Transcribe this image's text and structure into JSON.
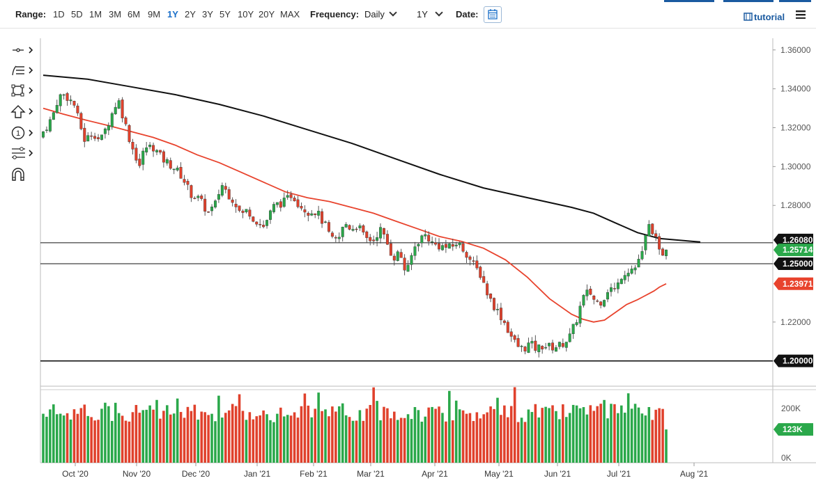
{
  "toolbar": {
    "range_label": "Range:",
    "ranges": [
      "1D",
      "5D",
      "1M",
      "3M",
      "6M",
      "9M",
      "1Y",
      "2Y",
      "3Y",
      "5Y",
      "10Y",
      "20Y",
      "MAX"
    ],
    "active_range": "1Y",
    "frequency_label": "Frequency:",
    "frequency_value": "Daily",
    "period_value": "1Y",
    "date_label": "Date:",
    "tutorial_label": "tutorial"
  },
  "drawing_tools": [
    "crosshair-icon",
    "trend-lines-icon",
    "shapes-icon",
    "arrow-up-icon",
    "counter-icon",
    "fibonacci-icon",
    "magnet-icon"
  ],
  "colors": {
    "up": "#2aa84a",
    "down": "#e0412c",
    "ma_fast": "#e8432d",
    "ma_slow": "#111111",
    "price_tag": "#2aa84a"
  },
  "chart_data": {
    "type": "candlestick",
    "y_axis": {
      "ticks": [
        "1.36000",
        "1.34000",
        "1.32000",
        "1.30000",
        "1.28000",
        "1.22000"
      ],
      "range": [
        1.187,
        1.366
      ]
    },
    "x_axis": {
      "labels": [
        "Oct '20",
        "Nov '20",
        "Dec '20",
        "Jan '21",
        "Feb '21",
        "Mar '21",
        "Apr '21",
        "May '21",
        "Jun '21",
        "Jul '21",
        "Aug '21"
      ]
    },
    "horizontal_levels": [
      {
        "value": 1.2608,
        "label": "1.26080"
      },
      {
        "value": 1.25,
        "label": "1.25000"
      },
      {
        "value": 1.2,
        "label": "1.20000"
      }
    ],
    "last_price": {
      "value": 1.25714,
      "label": "1.25714"
    },
    "moving_average_fast_last": {
      "value": 1.23971,
      "label": "1.23971"
    },
    "ma_fast_path": [
      [
        0,
        1.33
      ],
      [
        18,
        1.327
      ],
      [
        38,
        1.324
      ],
      [
        60,
        1.321
      ],
      [
        80,
        1.318
      ],
      [
        100,
        1.315
      ],
      [
        120,
        1.311
      ],
      [
        140,
        1.306
      ],
      [
        160,
        1.302
      ],
      [
        180,
        1.297
      ],
      [
        200,
        1.292
      ],
      [
        220,
        1.287
      ],
      [
        240,
        1.284
      ],
      [
        260,
        1.282
      ],
      [
        280,
        1.279
      ],
      [
        300,
        1.276
      ],
      [
        320,
        1.272
      ],
      [
        340,
        1.268
      ],
      [
        360,
        1.264
      ],
      [
        380,
        1.2615
      ],
      [
        400,
        1.258
      ],
      [
        420,
        1.252
      ],
      [
        440,
        1.243
      ],
      [
        460,
        1.232
      ],
      [
        480,
        1.224
      ],
      [
        490,
        1.2215
      ],
      [
        500,
        1.22
      ],
      [
        510,
        1.221
      ],
      [
        520,
        1.225
      ],
      [
        530,
        1.229
      ],
      [
        540,
        1.2315
      ],
      [
        545,
        1.233
      ],
      [
        550,
        1.2345
      ],
      [
        555,
        1.236
      ],
      [
        560,
        1.238
      ],
      [
        566,
        1.2397
      ]
    ],
    "ma_slow_path": [
      [
        0,
        1.347
      ],
      [
        40,
        1.345
      ],
      [
        80,
        1.341
      ],
      [
        120,
        1.337
      ],
      [
        160,
        1.332
      ],
      [
        200,
        1.326
      ],
      [
        240,
        1.319
      ],
      [
        280,
        1.312
      ],
      [
        320,
        1.304
      ],
      [
        360,
        1.296
      ],
      [
        400,
        1.289
      ],
      [
        440,
        1.284
      ],
      [
        480,
        1.279
      ],
      [
        500,
        1.276
      ],
      [
        520,
        1.271
      ],
      [
        540,
        1.266
      ],
      [
        560,
        1.263
      ],
      [
        580,
        1.262
      ],
      [
        590,
        1.2615
      ],
      [
        597,
        1.2612
      ]
    ],
    "volume": {
      "ticks": [
        "200K",
        "0K"
      ],
      "last": {
        "value": 123000,
        "label": "123K"
      }
    }
  }
}
